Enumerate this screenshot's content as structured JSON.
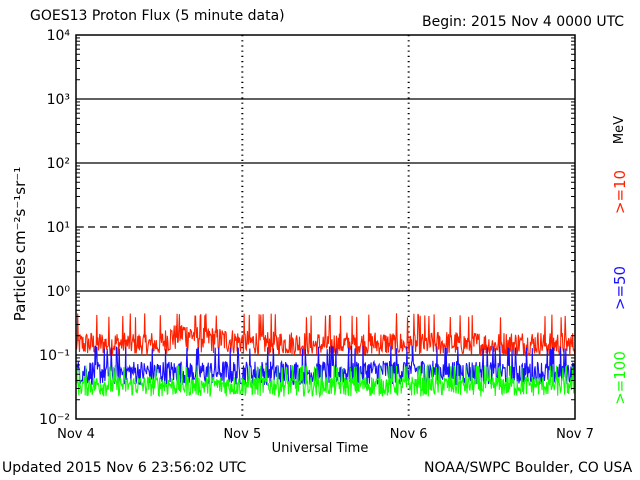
{
  "header": {
    "title": "GOES13 Proton Flux (5 minute data)",
    "begin": "Begin: 2015 Nov 4 0000 UTC"
  },
  "footer": {
    "updated": "Updated 2015 Nov  6 23:56:02 UTC",
    "credit": "NOAA/SWPC Boulder, CO USA"
  },
  "chart_data": {
    "type": "line",
    "title": "GOES13 Proton Flux (5 minute data)",
    "xlabel": "Universal Time",
    "ylabel": "Particles cm⁻²s⁻¹sr⁻¹",
    "yscale": "log",
    "ylim": [
      0.01,
      10000
    ],
    "xlim": [
      "Nov 4",
      "Nov 7"
    ],
    "x_ticks": [
      "Nov 4",
      "Nov 5",
      "Nov 6",
      "Nov 7"
    ],
    "y_ticks": [
      "10⁻²",
      "10⁻¹",
      "10⁰",
      "10¹",
      "10²",
      "10³",
      "10⁴"
    ],
    "y_tick_values": [
      0.01,
      0.1,
      1,
      10,
      100,
      1000,
      10000
    ],
    "unit_label": "MeV",
    "grid": "horizontal lines at each decade; dashed line at 10",
    "series": [
      {
        "name": ">=10",
        "color": "#ff2000",
        "baseline": 0.14,
        "range": [
          0.09,
          0.45
        ],
        "x_days": [
          0,
          0.25,
          0.5,
          0.625,
          0.75,
          1.0,
          1.25,
          1.5,
          1.75,
          2.0,
          2.25,
          2.5,
          2.75,
          3.0
        ],
        "y": [
          0.14,
          0.15,
          0.14,
          0.25,
          0.2,
          0.16,
          0.15,
          0.14,
          0.15,
          0.14,
          0.15,
          0.14,
          0.15,
          0.14
        ]
      },
      {
        "name": ">=50",
        "color": "#1a10ff",
        "baseline": 0.055,
        "range": [
          0.03,
          0.14
        ],
        "x_days": [
          0,
          0.5,
          1.0,
          1.5,
          2.0,
          2.5,
          3.0
        ],
        "y": [
          0.055,
          0.055,
          0.055,
          0.055,
          0.06,
          0.055,
          0.055
        ]
      },
      {
        "name": ">=100",
        "color": "#10ff00",
        "baseline": 0.035,
        "range": [
          0.02,
          0.07
        ],
        "x_days": [
          0,
          0.5,
          1.0,
          1.5,
          2.0,
          2.5,
          3.0
        ],
        "y": [
          0.035,
          0.035,
          0.035,
          0.035,
          0.035,
          0.035,
          0.035
        ]
      }
    ]
  }
}
